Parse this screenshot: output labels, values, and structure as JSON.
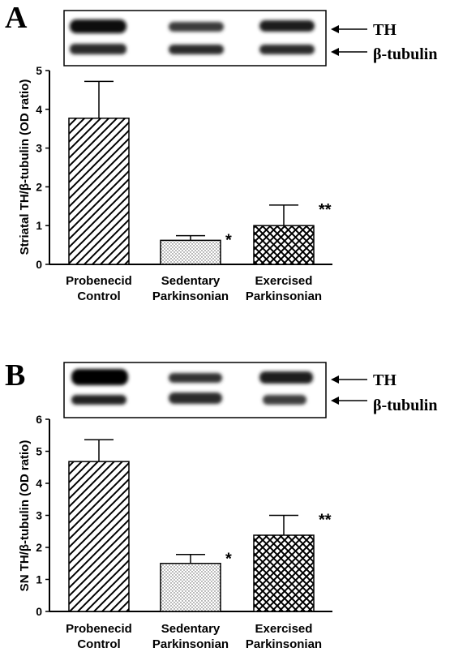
{
  "panels": [
    {
      "letter": "A",
      "blot_labels": [
        "TH",
        "β-tubulin"
      ],
      "chart_data": {
        "type": "bar",
        "ylabel": "Striatal TH/β-tubulin (OD ratio)",
        "xlabel": "",
        "categories": [
          [
            "Probenecid",
            "Control"
          ],
          [
            "Sedentary",
            "Parkinsonian"
          ],
          [
            "Exercised",
            "Parkinsonian"
          ]
        ],
        "values": [
          3.77,
          0.62,
          1.0
        ],
        "errors": [
          0.95,
          0.12,
          0.53
        ],
        "significance": [
          "",
          "*",
          "**"
        ],
        "patterns": [
          "diagonal-hatch",
          "dots",
          "crosshatch"
        ],
        "ylim": [
          0,
          5
        ],
        "yticks": [
          "0",
          "1",
          "2",
          "3",
          "4",
          "5"
        ],
        "grid": false
      }
    },
    {
      "letter": "B",
      "blot_labels": [
        "TH",
        "β-tubulin"
      ],
      "chart_data": {
        "type": "bar",
        "ylabel": "SN TH/β-tubulin (OD ratio)",
        "xlabel": "",
        "categories": [
          [
            "Probenecid",
            "Control"
          ],
          [
            "Sedentary",
            "Parkinsonian"
          ],
          [
            "Exercised",
            "Parkinsonian"
          ]
        ],
        "values": [
          4.68,
          1.5,
          2.38
        ],
        "errors": [
          0.68,
          0.28,
          0.62
        ],
        "significance": [
          "",
          "*",
          "**"
        ],
        "patterns": [
          "diagonal-hatch",
          "dots",
          "crosshatch"
        ],
        "ylim": [
          0,
          6
        ],
        "yticks": [
          "0",
          "1",
          "2",
          "3",
          "4",
          "5",
          "6"
        ],
        "grid": false
      }
    }
  ]
}
